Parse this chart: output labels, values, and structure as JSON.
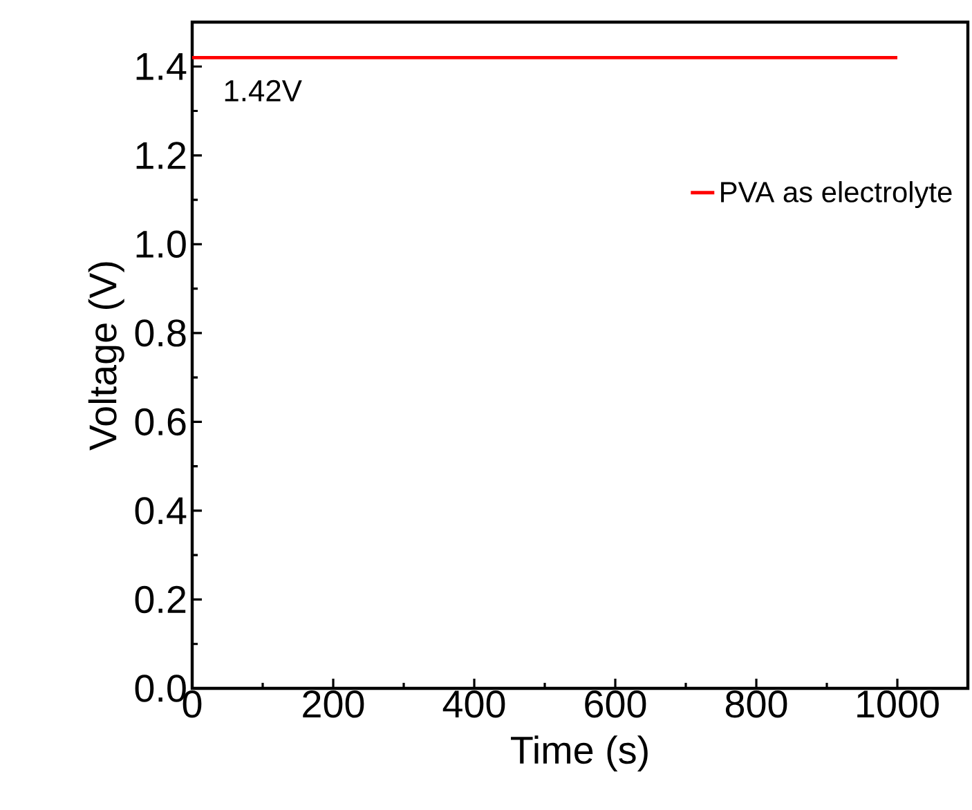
{
  "chart_data": {
    "type": "line",
    "xlabel": "Time (s)",
    "ylabel": "Voltage (V)",
    "x": [
      0,
      1000
    ],
    "series": [
      {
        "name": "PVA as electrolyte",
        "color": "#ff0000",
        "values": [
          1.42,
          1.42
        ]
      }
    ],
    "xlim": [
      0,
      1100
    ],
    "ylim": [
      0,
      1.5
    ],
    "xticks": [
      0,
      200,
      400,
      600,
      800,
      1000
    ],
    "yticks": [
      {
        "value": 0,
        "label": "0.0"
      },
      0.2,
      0.4,
      0.6,
      0.8,
      {
        "value": 1,
        "label": "1.0"
      },
      1.2,
      1.4
    ],
    "annotations": [
      {
        "text": "1.42V",
        "x": 0,
        "y": 1.42
      }
    ],
    "legend": "top right",
    "grid": false,
    "marker": "none",
    "line_style": "solid"
  }
}
